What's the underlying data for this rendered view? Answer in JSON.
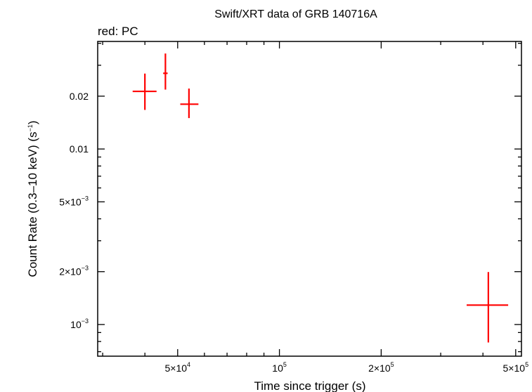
{
  "chart_data": {
    "type": "scatter",
    "title": "Swift/XRT data of GRB 140716A",
    "subtitle": "red: PC",
    "xlabel": "Time since trigger (s)",
    "ylabel": {
      "main": "Count Rate (0.3–10 keV) (s",
      "sup": "−1",
      "close": ")"
    },
    "x_scale": "log",
    "y_scale": "log",
    "xlim": [
      29000,
      520000
    ],
    "ylim": [
      0.00066,
      0.041
    ],
    "x_ticks": [
      {
        "value": 50000,
        "mant": "5×10",
        "exp": "4"
      },
      {
        "value": 100000,
        "mant": "10",
        "exp": "5"
      },
      {
        "value": 200000,
        "mant": "2×10",
        "exp": "5"
      },
      {
        "value": 500000,
        "mant": "5×10",
        "exp": "5"
      }
    ],
    "y_ticks": [
      {
        "value": 0.001,
        "mant": "10",
        "exp": "−3"
      },
      {
        "value": 0.002,
        "mant": "2×10",
        "exp": "−3"
      },
      {
        "value": 0.005,
        "mant": "5×10",
        "exp": "−3"
      },
      {
        "value": 0.01,
        "mant": "0.01",
        "exp": ""
      },
      {
        "value": 0.02,
        "mant": "0.02",
        "exp": ""
      }
    ],
    "series": [
      {
        "color": "#ff0000",
        "points": [
          {
            "x": 40000,
            "y": 0.0213,
            "xerr": [
              36800,
              43300
            ],
            "yerr": [
              0.0167,
              0.0269
            ]
          },
          {
            "x": 46000,
            "y": 0.027,
            "xerr": [
              45300,
              46700
            ],
            "yerr": [
              0.0218,
              0.035
            ]
          },
          {
            "x": 54000,
            "y": 0.018,
            "xerr": [
              50900,
              57600
            ],
            "yerr": [
              0.015,
              0.0221
            ]
          },
          {
            "x": 415000,
            "y": 0.00129,
            "xerr": [
              358000,
              475000
            ],
            "yerr": [
              0.00079,
              0.00199
            ]
          }
        ]
      }
    ]
  }
}
